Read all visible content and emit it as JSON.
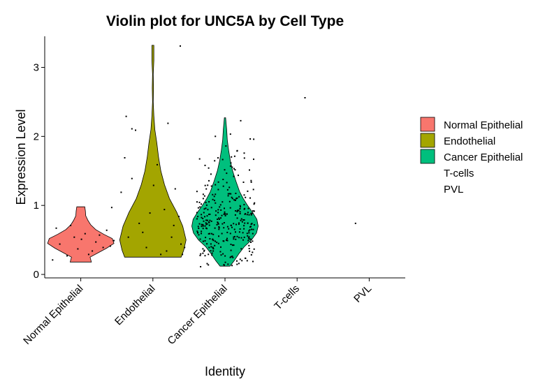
{
  "chart_data": {
    "type": "violin",
    "title": "Violin plot for UNC5A by Cell Type",
    "xlabel": "Identity",
    "ylabel": "Expression Level",
    "ylim": [
      -0.05,
      3.45
    ],
    "yticks": [
      0,
      1,
      2,
      3
    ],
    "grid": false,
    "legend_position": "right",
    "categories": [
      "Normal Epithelial",
      "Endothelial",
      "Cancer Epithelial",
      "T-cells",
      "PVL"
    ],
    "colors": [
      "#F8766D",
      "#A3A500",
      "#00BF7D",
      "#00B0F6",
      "#E76BF3"
    ],
    "series": [
      {
        "name": "Normal Epithelial",
        "range": [
          0.18,
          0.98
        ],
        "density": [
          [
            0.18,
            0.32
          ],
          [
            0.25,
            0.28
          ],
          [
            0.32,
            0.55
          ],
          [
            0.38,
            0.78
          ],
          [
            0.45,
            1.0
          ],
          [
            0.52,
            0.95
          ],
          [
            0.58,
            0.7
          ],
          [
            0.65,
            0.45
          ],
          [
            0.72,
            0.3
          ],
          [
            0.78,
            0.22
          ],
          [
            0.85,
            0.15
          ],
          [
            0.92,
            0.14
          ],
          [
            0.98,
            0.12
          ]
        ],
        "points": [
          [
            -0.4,
            0.22
          ],
          [
            -0.2,
            0.28
          ],
          [
            0.1,
            0.3
          ],
          [
            0.3,
            0.4
          ],
          [
            -0.3,
            0.45
          ],
          [
            0.2,
            0.48
          ],
          [
            0.0,
            0.52
          ],
          [
            0.4,
            0.42
          ],
          [
            -0.1,
            0.55
          ],
          [
            0.15,
            0.35
          ],
          [
            -0.35,
            0.68
          ],
          [
            0.05,
            0.6
          ],
          [
            -0.15,
            0.72
          ],
          [
            0.25,
            0.58
          ],
          [
            0.35,
            0.65
          ],
          [
            -0.05,
            0.38
          ],
          [
            0.45,
            0.5
          ],
          [
            0.42,
            0.98
          ]
        ]
      },
      {
        "name": "Endothelial",
        "range": [
          0.25,
          3.32
        ],
        "density": [
          [
            0.25,
            0.85
          ],
          [
            0.35,
            0.93
          ],
          [
            0.5,
            1.0
          ],
          [
            0.7,
            0.9
          ],
          [
            0.9,
            0.72
          ],
          [
            1.1,
            0.5
          ],
          [
            1.3,
            0.35
          ],
          [
            1.5,
            0.24
          ],
          [
            1.7,
            0.17
          ],
          [
            1.9,
            0.12
          ],
          [
            2.1,
            0.06
          ],
          [
            2.3,
            0.03
          ],
          [
            2.5,
            0.01
          ],
          [
            2.7,
            0.02
          ],
          [
            2.9,
            0.01
          ],
          [
            3.1,
            0.03
          ],
          [
            3.32,
            0.03
          ]
        ],
        "points": [
          [
            -0.38,
            2.3
          ],
          [
            -0.25,
            2.1
          ],
          [
            -0.4,
            1.7
          ],
          [
            0.2,
            2.2
          ],
          [
            -0.3,
            1.4
          ],
          [
            0.35,
            0.85
          ],
          [
            -0.1,
            0.4
          ],
          [
            0.1,
            0.3
          ],
          [
            0.25,
            0.55
          ],
          [
            -0.2,
            0.75
          ],
          [
            0.4,
            0.3
          ],
          [
            -0.35,
            0.55
          ],
          [
            0.3,
            1.25
          ],
          [
            0.05,
            1.6
          ],
          [
            -0.05,
            0.9
          ],
          [
            0.38,
            0.45
          ],
          [
            0.15,
            0.95
          ],
          [
            -0.45,
            1.2
          ],
          [
            0.43,
            0.4
          ],
          [
            -0.3,
            2.12
          ],
          [
            0.37,
            3.32
          ],
          [
            -0.15,
            0.62
          ],
          [
            0.18,
            0.35
          ],
          [
            0.28,
            0.72
          ],
          [
            0.0,
            1.3
          ]
        ]
      },
      {
        "name": "Cancer Epithelial",
        "range": [
          0.12,
          2.27
        ],
        "density": [
          [
            0.12,
            0.15
          ],
          [
            0.2,
            0.28
          ],
          [
            0.3,
            0.42
          ],
          [
            0.4,
            0.58
          ],
          [
            0.5,
            0.8
          ],
          [
            0.6,
            0.95
          ],
          [
            0.7,
            1.0
          ],
          [
            0.8,
            0.96
          ],
          [
            0.9,
            0.83
          ],
          [
            1.0,
            0.68
          ],
          [
            1.1,
            0.55
          ],
          [
            1.2,
            0.44
          ],
          [
            1.35,
            0.33
          ],
          [
            1.5,
            0.23
          ],
          [
            1.65,
            0.16
          ],
          [
            1.8,
            0.11
          ],
          [
            1.95,
            0.07
          ],
          [
            2.1,
            0.05
          ],
          [
            2.27,
            0.02
          ]
        ],
        "scatter_count": 320,
        "points": []
      },
      {
        "name": "T-cells",
        "range": null,
        "density": [],
        "points": [
          [
            0.1,
            2.57
          ]
        ]
      },
      {
        "name": "PVL",
        "range": null,
        "density": [],
        "points": [
          [
            -0.2,
            0.75
          ]
        ]
      }
    ]
  }
}
